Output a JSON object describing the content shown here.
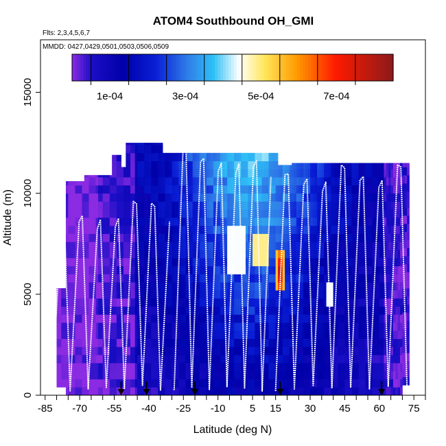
{
  "chart_data": {
    "type": "heatmap",
    "title": "ATOM4 Southbound OH_GMI",
    "flights_note": "Flts: 2,3,4,5,6,7",
    "dates_note": "MMDD: 0427,0429,0501,0503,0506,0509",
    "xlabel": "Latitude (deg N)",
    "ylabel": "Altitude (m)",
    "xlim": [
      -87,
      80
    ],
    "ylim": [
      0,
      17600
    ],
    "x_ticks": [
      -85,
      -70,
      -55,
      -40,
      -25,
      -10,
      5,
      15,
      30,
      45,
      60,
      75
    ],
    "x_tick_labels": [
      "-85",
      "-70",
      "-55",
      "-40",
      "-25",
      "-10",
      "5",
      "15",
      "30",
      "45",
      "60",
      "75"
    ],
    "x_minor_ticks": [
      -80,
      -75,
      -65,
      -60,
      -50,
      -45,
      -35,
      -30,
      -20,
      -15,
      -5,
      0,
      10,
      20,
      25,
      35,
      40,
      50,
      55,
      65,
      70,
      80
    ],
    "y_ticks": [
      0,
      5000,
      10000,
      15000
    ],
    "y_tick_labels": [
      "0",
      "5000",
      "10000",
      "15000"
    ],
    "colorbar": {
      "min": 0,
      "max": 0.00085,
      "ticks": [
        0.0001,
        0.0003,
        0.0005,
        0.0007
      ],
      "tick_labels": [
        "1e-04",
        "3e-04",
        "5e-04",
        "7e-04"
      ],
      "boundaries": [
        5e-05,
        0.00015,
        0.00025,
        0.00035,
        0.00045,
        0.00055,
        0.00065,
        0.00075
      ],
      "stops": [
        {
          "v": 0.0,
          "c": "#8b2be2"
        },
        {
          "v": 0.06,
          "c": "#1c0ec6"
        },
        {
          "v": 0.16,
          "c": "#0000a8"
        },
        {
          "v": 0.26,
          "c": "#0a1ed6"
        },
        {
          "v": 0.36,
          "c": "#2f7de8"
        },
        {
          "v": 0.44,
          "c": "#2ec0f6"
        },
        {
          "v": 0.52,
          "c": "#ffffff"
        },
        {
          "v": 0.6,
          "c": "#ffe65a"
        },
        {
          "v": 0.7,
          "c": "#ff9a00"
        },
        {
          "v": 0.82,
          "c": "#ff1a00"
        },
        {
          "v": 1.0,
          "c": "#8b1a1a"
        }
      ]
    },
    "arrow_latitudes": [
      -52,
      -41,
      -20,
      17,
      61
    ],
    "flight_profiles": [
      {
        "lat0": -82,
        "lat1": -31,
        "top": 9600
      },
      {
        "lat0": -29,
        "lat1": 13,
        "top": 12300
      },
      {
        "lat0": 15,
        "lat1": 72,
        "top": 11400
      }
    ],
    "hotspot": {
      "lat": 17,
      "alt_min": 5100,
      "alt_max": 7100,
      "value": 0.00078
    },
    "bright_patches": [
      {
        "lat_min": -6,
        "lat_max": 2,
        "alt_min": 6200,
        "alt_max": 8200,
        "value": 0.00044
      },
      {
        "lat_min": 5,
        "lat_max": 12,
        "alt_min": 6500,
        "alt_max": 8000,
        "value": 0.00049
      },
      {
        "lat_min": 37,
        "lat_max": 40,
        "alt_min": 4500,
        "alt_max": 5500,
        "value": 0.00044
      }
    ]
  }
}
